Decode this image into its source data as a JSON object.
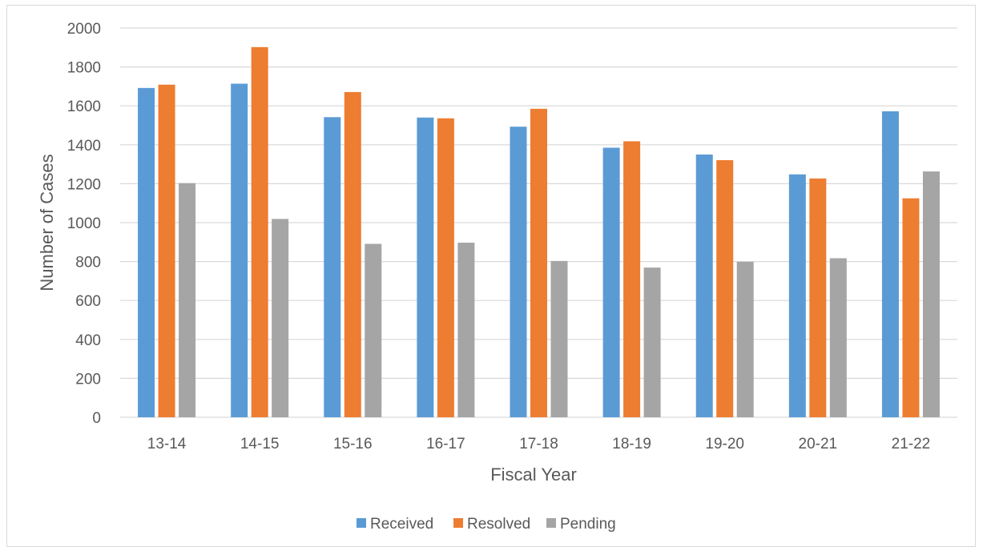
{
  "chart_data": {
    "type": "bar",
    "title": "",
    "xlabel": "Fiscal Year",
    "ylabel": "Number of Cases",
    "categories": [
      "13-14",
      "14-15",
      "15-16",
      "16-17",
      "17-18",
      "18-19",
      "19-20",
      "20-21",
      "21-22"
    ],
    "series": [
      {
        "name": "Received",
        "color": "#5b9bd5",
        "values": [
          1692,
          1714,
          1542,
          1540,
          1493,
          1385,
          1350,
          1248,
          1572
        ]
      },
      {
        "name": "Resolved",
        "color": "#ed7d31",
        "values": [
          1709,
          1902,
          1671,
          1536,
          1585,
          1418,
          1321,
          1227,
          1125
        ]
      },
      {
        "name": "Pending",
        "color": "#a5a5a5",
        "values": [
          1203,
          1019,
          891,
          897,
          803,
          769,
          799,
          817,
          1263
        ]
      }
    ],
    "ylim": [
      0,
      2000
    ],
    "yticks": [
      0,
      200,
      400,
      600,
      800,
      1000,
      1200,
      1400,
      1600,
      1800,
      2000
    ],
    "grid": true,
    "legend_position": "bottom"
  }
}
